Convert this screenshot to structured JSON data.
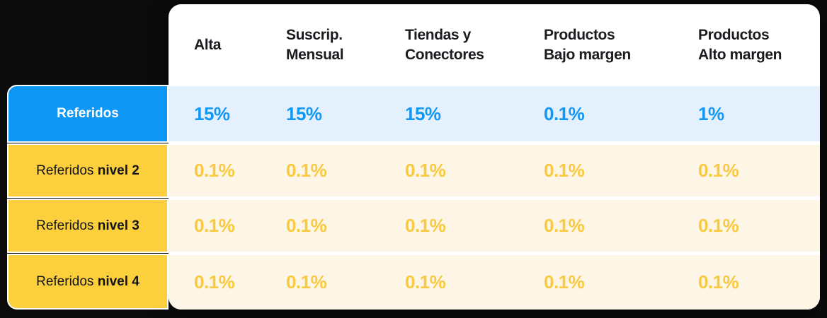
{
  "chart_data": {
    "type": "table",
    "title": "",
    "columns": [
      {
        "label": "Alta",
        "lines": [
          "Alta"
        ]
      },
      {
        "label": "Suscrip. Mensual",
        "lines": [
          "Suscrip.",
          "Mensual"
        ]
      },
      {
        "label": "Tiendas y Conectores",
        "lines": [
          "Tiendas y",
          "Conectores"
        ]
      },
      {
        "label": "Productos Bajo margen",
        "lines": [
          "Productos",
          "Bajo margen"
        ]
      },
      {
        "label": "Productos Alto margen",
        "lines": [
          "Productos",
          "Alto margen"
        ]
      }
    ],
    "rows": [
      {
        "label": "Referidos",
        "label_regular": "",
        "label_bold": "Referidos",
        "style": "blue",
        "values": [
          "15%",
          "15%",
          "15%",
          "0.1%",
          "1%"
        ]
      },
      {
        "label": "Referidos nivel 2",
        "label_regular": "Referidos ",
        "label_bold": "nivel 2",
        "style": "yellow",
        "values": [
          "0.1%",
          "0.1%",
          "0.1%",
          "0.1%",
          "0.1%"
        ]
      },
      {
        "label": "Referidos nivel 3",
        "label_regular": "Referidos ",
        "label_bold": "nivel 3",
        "style": "yellow",
        "values": [
          "0.1%",
          "0.1%",
          "0.1%",
          "0.1%",
          "0.1%"
        ]
      },
      {
        "label": "Referidos nivel 4",
        "label_regular": "Referidos ",
        "label_bold": "nivel 4",
        "style": "yellow",
        "values": [
          "0.1%",
          "0.1%",
          "0.1%",
          "0.1%",
          "0.1%"
        ]
      }
    ],
    "layout_hints": {
      "grid": false,
      "legend": false,
      "header_position": "top",
      "row_labels_position": "left"
    }
  },
  "colors": {
    "background": "#0b0b0b",
    "panel": "#ffffff",
    "accent_blue": "#0d96f3",
    "row_blue_bg": "#e4f1fc",
    "accent_yellow": "#fcd03c",
    "row_cream_bg": "#fdf6e7",
    "value_blue": "#1297f3",
    "value_yellow": "#f9ca41",
    "header_text": "#1b1c20",
    "label_dark_text": "#121316",
    "label_light_text": "#ffffff"
  }
}
